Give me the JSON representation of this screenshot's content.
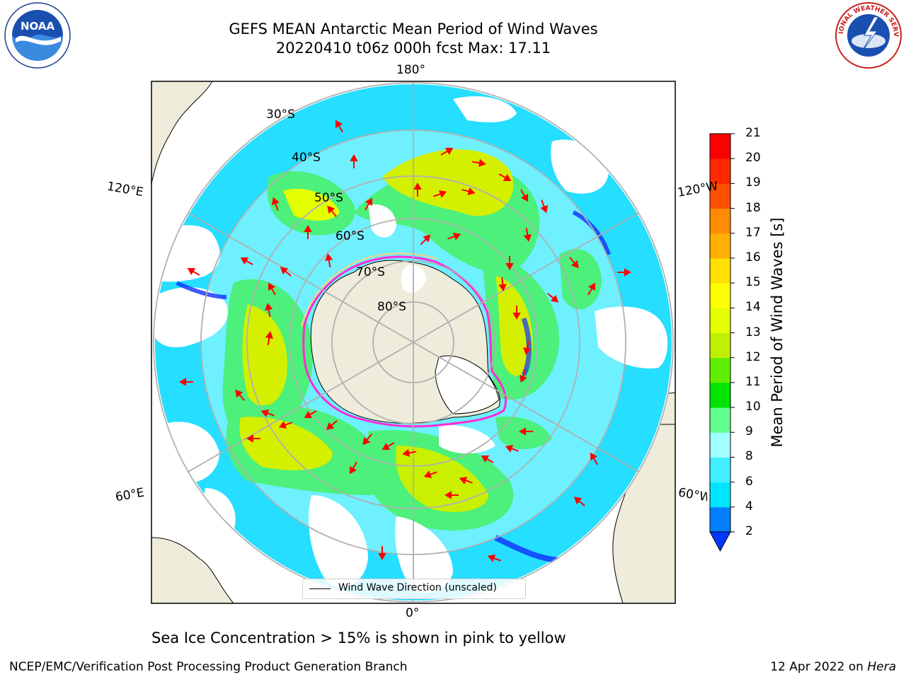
{
  "title": {
    "line1": "GEFS MEAN Antarctic Mean Period of Wind Waves",
    "line2": "20220410 t06z 000h fcst   Max: 17.11"
  },
  "logos": {
    "left_text": "NOAA",
    "right_text": "NATIONAL WEATHER SERVICE"
  },
  "map": {
    "projection": "south polar stereographic",
    "longitude_labels": {
      "top": "180°",
      "bottom": "0°",
      "upper_left": "120°E",
      "lower_left": "60°E",
      "upper_right": "120°W",
      "lower_right": "60°W"
    },
    "latitude_labels": [
      "30°S",
      "40°S",
      "50°S",
      "60°S",
      "70°S",
      "80°S"
    ],
    "legend_label": "Wind Wave Direction (unscaled)",
    "land_color": "#efecdc",
    "ice_edge_colors": [
      "#ff55ff",
      "#ffd27a"
    ],
    "arrow_color": "#ff0000"
  },
  "colorbar": {
    "label": "Mean Period of Wind Waves [s]",
    "ticks": [
      "2",
      "4",
      "6",
      "8",
      "9",
      "10",
      "11",
      "12",
      "13",
      "14",
      "15",
      "16",
      "17",
      "18",
      "19",
      "20",
      "21"
    ],
    "colors": [
      "#0038ff",
      "#0080ff",
      "#00e5ff",
      "#40f0ff",
      "#a0ffff",
      "#60ff90",
      "#00e400",
      "#60ee00",
      "#c0f000",
      "#e4ff00",
      "#ffff00",
      "#ffe000",
      "#ffb000",
      "#ff8c00",
      "#ff5000",
      "#ff2800",
      "#ff0000"
    ]
  },
  "caption": "Sea Ice Concentration > 15% is shown in pink to yellow",
  "footer": {
    "left": "NCEP/EMC/Verification Post Processing Product Generation Branch",
    "right_prefix": "12 Apr 2022 on ",
    "right_italic": "Hera"
  }
}
